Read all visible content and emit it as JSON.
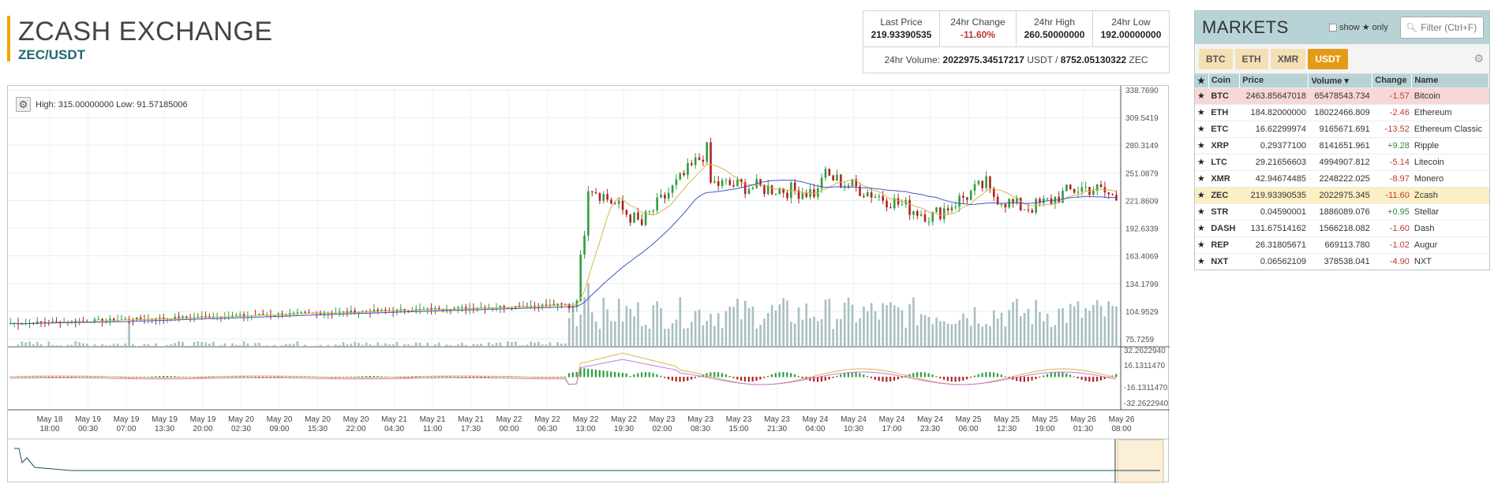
{
  "header": {
    "title": "ZCASH EXCHANGE",
    "pair": "ZEC/USDT"
  },
  "stats": {
    "last_price_label": "Last Price",
    "last_price": "219.93390535",
    "change_label": "24hr Change",
    "change": "-11.60%",
    "high_label": "24hr High",
    "high": "260.50000000",
    "low_label": "24hr Low",
    "low": "192.00000000",
    "volume_label": "24hr Volume:",
    "volume_usdt": "2022975.34517217",
    "volume_usdt_unit": "USDT /",
    "volume_zec": "8752.05130322",
    "volume_zec_unit": "ZEC"
  },
  "chart": {
    "hilo_text": "High: 315.00000000   Low: 91.57185006",
    "price_ticks": [
      "338.7690",
      "309.5419",
      "280.3149",
      "251.0879",
      "221.8609",
      "192.6339",
      "163.4069",
      "134.1799",
      "104.9529",
      "75.7259"
    ],
    "macd_ticks": [
      "32.2622940",
      "16.1311470",
      "-16.1311470",
      "-32.2622940"
    ],
    "time_ticks": [
      [
        "May 18",
        "18:00"
      ],
      [
        "May 19",
        "00:30"
      ],
      [
        "May 19",
        "07:00"
      ],
      [
        "May 19",
        "13:30"
      ],
      [
        "May 19",
        "20:00"
      ],
      [
        "May 20",
        "02:30"
      ],
      [
        "May 20",
        "09:00"
      ],
      [
        "May 20",
        "15:30"
      ],
      [
        "May 20",
        "22:00"
      ],
      [
        "May 21",
        "04:30"
      ],
      [
        "May 21",
        "11:00"
      ],
      [
        "May 21",
        "17:30"
      ],
      [
        "May 22",
        "00:00"
      ],
      [
        "May 22",
        "06:30"
      ],
      [
        "May 22",
        "13:00"
      ],
      [
        "May 22",
        "19:30"
      ],
      [
        "May 23",
        "02:00"
      ],
      [
        "May 23",
        "08:30"
      ],
      [
        "May 23",
        "15:00"
      ],
      [
        "May 23",
        "21:30"
      ],
      [
        "May 24",
        "04:00"
      ],
      [
        "May 24",
        "10:30"
      ],
      [
        "May 24",
        "17:00"
      ],
      [
        "May 24",
        "23:30"
      ],
      [
        "May 25",
        "06:00"
      ],
      [
        "May 25",
        "12:30"
      ],
      [
        "May 25",
        "19:00"
      ],
      [
        "May 26",
        "01:30"
      ],
      [
        "May 26",
        "08:00"
      ]
    ],
    "colors": {
      "up": "#2e9e3e",
      "down": "#b22222",
      "ma_fast": "#d9b24c",
      "ma_slow": "#3b58c4",
      "volume": "#a9bfc1",
      "macd_line": "#d9b24c",
      "signal_line": "#c77ad9"
    }
  },
  "markets": {
    "title": "MARKETS",
    "show_label": "show",
    "only_label": "only",
    "filter_placeholder": "Filter (Ctrl+F)",
    "tabs": [
      {
        "label": "BTC",
        "active": false
      },
      {
        "label": "ETH",
        "active": false
      },
      {
        "label": "XMR",
        "active": false
      },
      {
        "label": "USDT",
        "active": true
      }
    ],
    "columns": [
      "Coin",
      "Price",
      "Volume ▾",
      "Change",
      "Name"
    ],
    "rows": [
      {
        "coin": "BTC",
        "price": "2463.85647018",
        "volume": "65478543.734",
        "change": "-1.57",
        "name": "Bitcoin"
      },
      {
        "coin": "ETH",
        "price": "184.82000000",
        "volume": "18022466.809",
        "change": "-2.46",
        "name": "Ethereum"
      },
      {
        "coin": "ETC",
        "price": "16.62299974",
        "volume": "9165671.691",
        "change": "-13.52",
        "name": "Ethereum Classic"
      },
      {
        "coin": "XRP",
        "price": "0.29377100",
        "volume": "8141651.961",
        "change": "+9.28",
        "name": "Ripple"
      },
      {
        "coin": "LTC",
        "price": "29.21656603",
        "volume": "4994907.812",
        "change": "-5.14",
        "name": "Litecoin"
      },
      {
        "coin": "XMR",
        "price": "42.94674485",
        "volume": "2248222.025",
        "change": "-8.97",
        "name": "Monero"
      },
      {
        "coin": "ZEC",
        "price": "219.93390535",
        "volume": "2022975.345",
        "change": "-11.60",
        "name": "Zcash"
      },
      {
        "coin": "STR",
        "price": "0.04590001",
        "volume": "1886089.076",
        "change": "+0.95",
        "name": "Stellar"
      },
      {
        "coin": "DASH",
        "price": "131.67514162",
        "volume": "1566218.082",
        "change": "-1.60",
        "name": "Dash"
      },
      {
        "coin": "REP",
        "price": "26.31805671",
        "volume": "669113.780",
        "change": "-1.02",
        "name": "Augur"
      },
      {
        "coin": "NXT",
        "price": "0.06562109",
        "volume": "378538.041",
        "change": "-4.90",
        "name": "NXT"
      }
    ]
  }
}
